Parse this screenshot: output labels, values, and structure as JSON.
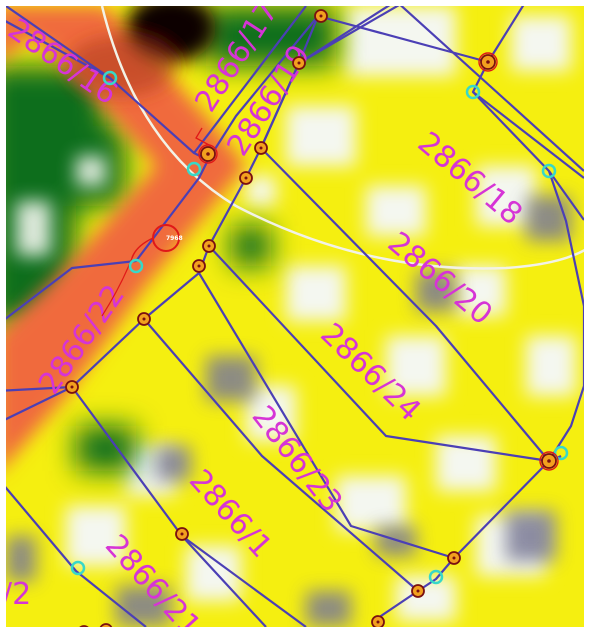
{
  "map": {
    "colors": {
      "base": "#f5ef10",
      "road": "#f06a3c",
      "vegetation": "#0e6e1c",
      "clearing": "#f4f7f0",
      "shadow": "#7a7a96",
      "boundary": "#4b3fb5",
      "parcel_label": "#d634d6",
      "vertex_ring": "#7a1010",
      "vertex_fill": "#f2a01e",
      "control_point": "#38d8c8",
      "arc": "#f2f2e6",
      "poi": "#e01818"
    },
    "parcels": [
      {
        "id": "p16",
        "label": "2866/16"
      },
      {
        "id": "p17",
        "label": "2866/17"
      },
      {
        "id": "p19",
        "label": "2866/19"
      },
      {
        "id": "p18",
        "label": "2866/18"
      },
      {
        "id": "p20",
        "label": "2866/20"
      },
      {
        "id": "p22",
        "label": "2866/22"
      },
      {
        "id": "p24",
        "label": "2866/24"
      },
      {
        "id": "p23",
        "label": "2866/23"
      },
      {
        "id": "p1",
        "label": "2866/1"
      },
      {
        "id": "p21",
        "label": "2866/21"
      },
      {
        "id": "p2",
        "label": "/2"
      }
    ],
    "poi_label": "7968"
  }
}
